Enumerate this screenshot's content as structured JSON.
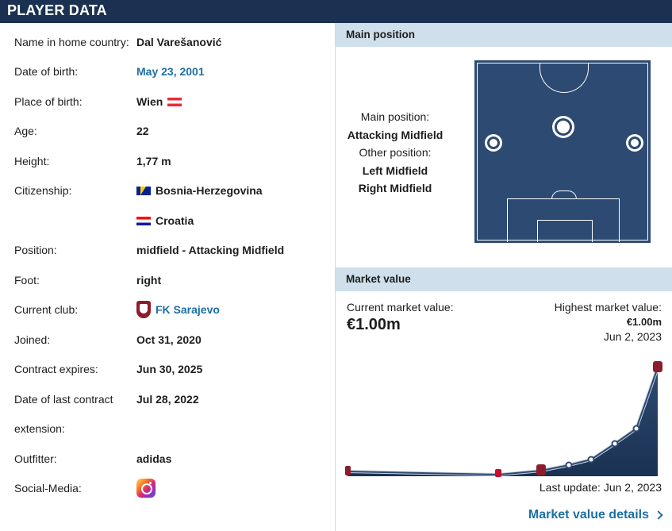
{
  "header": {
    "title": "PLAYER DATA"
  },
  "player": {
    "name_label": "Name in home country:",
    "name_value": "Dal Varešanović",
    "dob_label": "Date of birth:",
    "dob_value": "May 23, 2001",
    "pob_label": "Place of birth:",
    "pob_value": "Wien",
    "age_label": "Age:",
    "age_value": "22",
    "height_label": "Height:",
    "height_value": "1,77 m",
    "citizenship_label": "Citizenship:",
    "citizenship_1": "Bosnia-Herzegovina",
    "citizenship_2": "Croatia",
    "position_label": "Position:",
    "position_value": "midfield - Attacking Midfield",
    "foot_label": "Foot:",
    "foot_value": "right",
    "club_label": "Current club:",
    "club_value": "FK Sarajevo",
    "joined_label": "Joined:",
    "joined_value": "Oct 31, 2020",
    "contract_label": "Contract expires:",
    "contract_value": "Jun 30, 2025",
    "last_ext_label_1": "Date of last contract",
    "last_ext_label_2": "extension:",
    "last_ext_value": "Jul 28, 2022",
    "outfitter_label": "Outfitter:",
    "outfitter_value": "adidas",
    "social_label": "Social-Media:"
  },
  "main_position": {
    "heading": "Main position",
    "main_label": "Main position:",
    "main_value": "Attacking Midfield",
    "other_label": "Other position:",
    "other_1": "Left Midfield",
    "other_2": "Right Midfield"
  },
  "market_value": {
    "heading": "Market value",
    "current_label": "Current market value:",
    "current_value": "€1.00m",
    "highest_label": "Highest market value:",
    "highest_value": "€1.00m",
    "highest_date": "Jun 2, 2023",
    "last_update": "Last update: Jun 2, 2023",
    "details_link": "Market value details"
  },
  "colors": {
    "header": "#1a3151",
    "panel_head": "#cfe0ec",
    "link": "#1d6fa5",
    "pitch": "#2d4a72"
  }
}
